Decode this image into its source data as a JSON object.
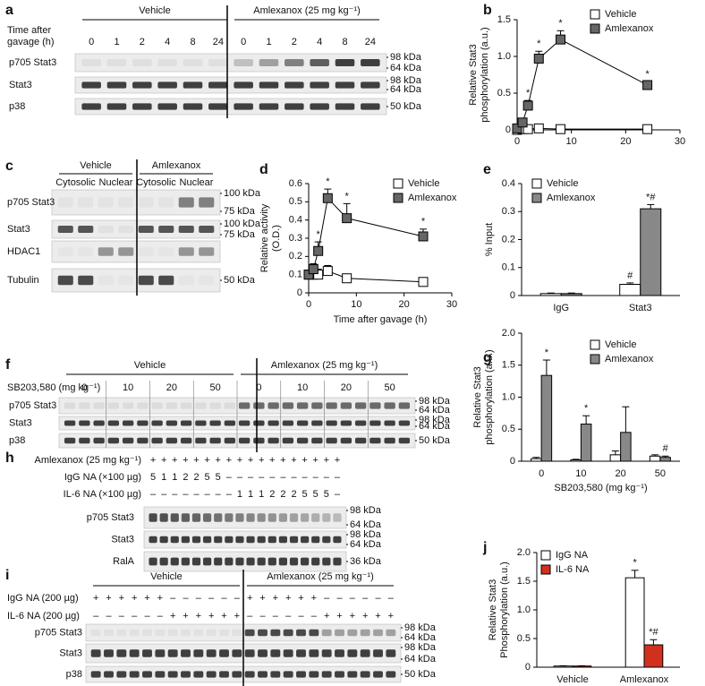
{
  "blots": [
    {
      "label": "a",
      "header": [
        "Time after",
        "gavage (h)"
      ],
      "groups": [
        "Vehicle",
        "Amlexanox (25 mg kg⁻¹)"
      ],
      "lanes": [
        "0",
        "1",
        "2",
        "4",
        "8",
        "24",
        "0",
        "1",
        "2",
        "4",
        "8",
        "24"
      ],
      "rows": [
        {
          "name": "p705 Stat3",
          "markers": [
            "98 kDa",
            "64 kDa"
          ]
        },
        {
          "name": "Stat3",
          "markers": [
            "98 kDa",
            "64 kDa"
          ]
        },
        {
          "name": "p38",
          "markers": [
            "50 kDa"
          ]
        }
      ]
    },
    {
      "label": "c",
      "groups": [
        "Vehicle",
        "Amlexanox"
      ],
      "lanes": [
        "Cytosolic",
        "Nuclear",
        "Cytosolic",
        "Nuclear"
      ],
      "rows": [
        {
          "name": "p705 Stat3",
          "markers": [
            "100 kDa",
            "75 kDa"
          ]
        },
        {
          "name": "Stat3",
          "markers": [
            "100 kDa",
            "75 kDa"
          ]
        },
        {
          "name": "HDAC1",
          "markers": []
        },
        {
          "name": "Tubulin",
          "markers": [
            "50 kDa"
          ]
        }
      ]
    },
    {
      "label": "f",
      "header": [
        "SB203,580 (mg kg⁻¹)"
      ],
      "groups": [
        "Vehicle",
        "Amlexanox (25 mg kg⁻¹)"
      ],
      "lanes": [
        "0",
        "10",
        "20",
        "50",
        "0",
        "10",
        "20",
        "50"
      ],
      "rows": [
        {
          "name": "p705 Stat3",
          "markers": [
            "98 kDa",
            "64 kDa"
          ]
        },
        {
          "name": "Stat3",
          "markers": [
            "98 kDa",
            "64 kDa"
          ]
        },
        {
          "name": "p38",
          "markers": [
            "50 kDa"
          ]
        }
      ]
    },
    {
      "label": "h",
      "conditions": [
        {
          "name": "Amlexanox (25 mg kg⁻¹)",
          "lanes": [
            "+",
            "+",
            "+",
            "+",
            "+",
            "+",
            "+",
            "+",
            "+",
            "+",
            "+",
            "+",
            "+",
            "+",
            "+",
            "+",
            "+",
            "+"
          ]
        },
        {
          "name": "IgG NA (×100 µg)",
          "lanes": [
            "5",
            "1",
            "1",
            "2",
            "2",
            "5",
            "5",
            "–",
            "–",
            "–",
            "–",
            "–",
            "–",
            "–",
            "–",
            "–",
            "–",
            "–"
          ]
        },
        {
          "name": "IL-6 NA (×100 µg)",
          "lanes": [
            "–",
            "–",
            "–",
            "–",
            "–",
            "–",
            "–",
            "–",
            "1",
            "1",
            "1",
            "2",
            "2",
            "2",
            "5",
            "5",
            "5",
            "–"
          ]
        }
      ],
      "rows": [
        {
          "name": "p705 Stat3",
          "markers": [
            "98 kDa",
            "64 kDa"
          ]
        },
        {
          "name": "Stat3",
          "markers": [
            "98 kDa",
            "64 kDa"
          ]
        },
        {
          "name": "RalA",
          "markers": [
            "36 kDa"
          ]
        }
      ]
    },
    {
      "label": "i",
      "groups": [
        "Vehicle",
        "Amlexanox (25 mg kg⁻¹)"
      ],
      "conditions": [
        {
          "name": "IgG NA (200 µg)",
          "lanes": [
            "+",
            "+",
            "+",
            "+",
            "+",
            "+",
            "–",
            "–",
            "–",
            "–",
            "–",
            "–",
            "+",
            "+",
            "+",
            "+",
            "+",
            "+",
            "–",
            "–",
            "–",
            "–",
            "–",
            "–"
          ]
        },
        {
          "name": "IL-6 NA (200 µg)",
          "lanes": [
            "–",
            "–",
            "–",
            "–",
            "–",
            "–",
            "+",
            "+",
            "+",
            "+",
            "+",
            "+",
            "–",
            "–",
            "–",
            "–",
            "–",
            "–",
            "+",
            "+",
            "+",
            "+",
            "+",
            "+"
          ]
        }
      ],
      "rows": [
        {
          "name": "p705 Stat3",
          "markers": [
            "98 kDa",
            "64 kDa"
          ]
        },
        {
          "name": "Stat3",
          "markers": [
            "98 kDa",
            "64 kDa"
          ]
        },
        {
          "name": "p38",
          "markers": [
            "50 kDa"
          ]
        }
      ]
    }
  ],
  "chart_data": [
    {
      "label": "b",
      "type": "line",
      "ylabel": [
        "Relative Stat3",
        "phosphorylation (a.u.)"
      ],
      "x": [
        0,
        1,
        2,
        4,
        8,
        24
      ],
      "xlim": [
        0,
        30
      ],
      "xticks": [
        0,
        10,
        20,
        30
      ],
      "ylim": [
        0,
        1.5
      ],
      "yticks": [
        0,
        0.5,
        {
          "value": 1,
          "label": "1.0"
        },
        1.5
      ],
      "series": [
        {
          "name": "Vehicle",
          "color": "#ffffff",
          "values": [
            0,
            0.01,
            0.01,
            0.02,
            0.01,
            0.01
          ]
        },
        {
          "name": "Amlexanox",
          "color": "#666666",
          "values": [
            0.02,
            0.1,
            0.33,
            0.97,
            1.23,
            0.61
          ],
          "errors": [
            0.02,
            0.05,
            0.07,
            0.1,
            0.12,
            0.05
          ],
          "significance": [
            null,
            null,
            "*",
            "*",
            "*",
            "*"
          ]
        }
      ]
    },
    {
      "label": "d",
      "type": "line",
      "xlabel": "Time after gavage (h)",
      "ylabel": [
        "Relative activity",
        "(O.D.)"
      ],
      "x": [
        0,
        1,
        2,
        4,
        8,
        24
      ],
      "xlim": [
        0,
        30
      ],
      "xticks": [
        0,
        10,
        20,
        30
      ],
      "ylim": [
        0,
        0.6
      ],
      "yticks": [
        0,
        0.1,
        0.2,
        0.3,
        0.4,
        0.5,
        0.6
      ],
      "series": [
        {
          "name": "Vehicle",
          "color": "#ffffff",
          "values": [
            0.1,
            0.1,
            0.1,
            0.12,
            0.08,
            0.06
          ],
          "errors": [
            0.02,
            0.02,
            0.03,
            0.03,
            0.02,
            0.01
          ]
        },
        {
          "name": "Amlexanox",
          "color": "#666666",
          "values": [
            0.1,
            0.13,
            0.23,
            0.52,
            0.41,
            0.31
          ],
          "errors": [
            0.02,
            0.03,
            0.05,
            0.05,
            0.08,
            0.04
          ],
          "significance": [
            null,
            null,
            "*",
            "*",
            "*",
            "*"
          ]
        }
      ]
    },
    {
      "label": "e",
      "type": "bar",
      "ylabel": [
        "% Input"
      ],
      "categories": [
        "IgG",
        "Stat3"
      ],
      "ylim": [
        0,
        0.4
      ],
      "yticks": [
        0,
        0.1,
        0.2,
        0.3,
        0.4
      ],
      "series": [
        {
          "name": "Vehicle",
          "color": "#ffffff",
          "values": [
            0.007,
            0.04
          ],
          "errors": [
            0.002,
            0.005
          ],
          "significance": [
            null,
            "#"
          ]
        },
        {
          "name": "Amlexanox",
          "color": "#888888",
          "values": [
            0.007,
            0.31
          ],
          "errors": [
            0.002,
            0.015
          ],
          "significance": [
            null,
            "*#"
          ]
        }
      ]
    },
    {
      "label": "g",
      "type": "bar",
      "xlabel": "SB203,580 (mg kg⁻¹)",
      "ylabel": [
        "Relative Stat3",
        "phosphorylation (a.u.)"
      ],
      "categories": [
        "0",
        "10",
        "20",
        "50"
      ],
      "ylim": [
        0,
        2
      ],
      "yticks": [
        0,
        0.5,
        {
          "value": 1,
          "label": "1.0"
        },
        1.5,
        {
          "value": 2,
          "label": "2.0"
        }
      ],
      "series": [
        {
          "name": "Vehicle",
          "color": "#ffffff",
          "values": [
            0.04,
            0.02,
            0.1,
            0.08
          ],
          "errors": [
            0.02,
            0.01,
            0.06,
            0.02
          ]
        },
        {
          "name": "Amlexanox",
          "color": "#888888",
          "values": [
            1.34,
            0.58,
            0.45,
            0.06
          ],
          "errors": [
            0.24,
            0.13,
            0.4,
            0.02
          ],
          "significance": [
            "*",
            "*",
            null,
            "#"
          ]
        }
      ]
    },
    {
      "label": "j",
      "type": "bar",
      "ylabel": [
        "Relative Stat3",
        "Phosphorylation (a.u.)"
      ],
      "categories": [
        "Vehicle",
        "Amlexanox"
      ],
      "ylim": [
        0,
        2
      ],
      "yticks": [
        0,
        0.5,
        {
          "value": 1,
          "label": "1.0"
        },
        1.5,
        {
          "value": 2,
          "label": "2.0"
        }
      ],
      "series": [
        {
          "name": "IgG NA",
          "color": "#ffffff",
          "values": [
            0.02,
            1.56
          ],
          "errors": [
            0.005,
            0.13
          ],
          "significance": [
            null,
            "*"
          ]
        },
        {
          "name": "IL-6 NA",
          "color": "#d2301e",
          "values": [
            0.02,
            0.39
          ],
          "errors": [
            0.005,
            0.09
          ],
          "significance": [
            null,
            "*#"
          ]
        }
      ]
    }
  ]
}
